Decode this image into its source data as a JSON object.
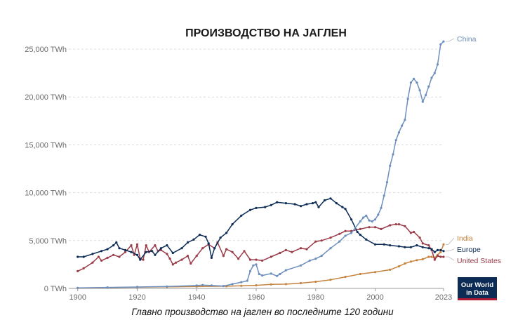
{
  "title": "ПРОИЗВОДСТВО НА ЈАГЛЕН",
  "caption": "Главно производство на јаглен во последните 120 години",
  "logo": {
    "line1": "Our World",
    "line2": "in Data",
    "bg": "#0c2c55",
    "accent": "#b01a32"
  },
  "chart_data": {
    "type": "line",
    "title": "ПРОИЗВОДСТВО НА ЈАГЛЕН",
    "xlabel": "",
    "ylabel": "",
    "xlim": [
      1897,
      2023
    ],
    "ylim": [
      0,
      25000
    ],
    "grid": true,
    "legend": "right",
    "y_ticks": [
      0,
      5000,
      10000,
      15000,
      20000,
      25000
    ],
    "y_tick_labels": [
      "0 TWh",
      "5,000 TWh",
      "10,000 TWh",
      "15,000 TWh",
      "20,000 TWh",
      "25,000 TWh"
    ],
    "x_ticks": [
      1900,
      1920,
      1940,
      1960,
      1980,
      2000,
      2023
    ],
    "x_tick_labels": [
      "1900",
      "1920",
      "1940",
      "1960",
      "1980",
      "2000",
      "2023"
    ],
    "series": [
      {
        "name": "China",
        "color": "#6d8fbd",
        "x": [
          1900,
          1910,
          1920,
          1930,
          1940,
          1942,
          1945,
          1949,
          1952,
          1955,
          1957,
          1958,
          1959,
          1960,
          1961,
          1962,
          1965,
          1967,
          1968,
          1970,
          1975,
          1978,
          1980,
          1982,
          1985,
          1988,
          1990,
          1992,
          1995,
          1996,
          1997,
          1998,
          1999,
          2000,
          2001,
          2002,
          2003,
          2004,
          2005,
          2006,
          2007,
          2008,
          2009,
          2010,
          2011,
          2012,
          2013,
          2014,
          2015,
          2016,
          2017,
          2018,
          2019,
          2020,
          2021,
          2022,
          2023
        ],
        "values": [
          50,
          100,
          150,
          200,
          300,
          350,
          300,
          250,
          450,
          650,
          800,
          1800,
          2400,
          2500,
          1500,
          1350,
          1550,
          1300,
          1500,
          1900,
          2400,
          2900,
          3100,
          3400,
          4200,
          4900,
          5500,
          5800,
          7000,
          7400,
          7600,
          7100,
          7000,
          7200,
          7700,
          8400,
          9700,
          11100,
          12800,
          14000,
          15500,
          16300,
          17000,
          17600,
          19800,
          21500,
          21900,
          21500,
          20700,
          19500,
          20200,
          21100,
          22000,
          22500,
          23400,
          25500,
          25800
        ]
      },
      {
        "name": "Europe",
        "color": "#0c2c55",
        "x": [
          1900,
          1902,
          1905,
          1908,
          1910,
          1912,
          1913,
          1914,
          1916,
          1918,
          1920,
          1921,
          1923,
          1925,
          1926,
          1928,
          1930,
          1932,
          1935,
          1937,
          1939,
          1941,
          1943,
          1944,
          1945,
          1946,
          1948,
          1950,
          1952,
          1955,
          1958,
          1960,
          1963,
          1965,
          1967,
          1970,
          1973,
          1975,
          1977,
          1979,
          1980,
          1981,
          1983,
          1985,
          1987,
          1989,
          1990,
          1992,
          1994,
          1995,
          1997,
          2000,
          2003,
          2005,
          2008,
          2010,
          2012,
          2014,
          2016,
          2018,
          2019,
          2020,
          2021,
          2022,
          2023
        ],
        "values": [
          3300,
          3300,
          3600,
          3900,
          4100,
          4500,
          4800,
          4200,
          4000,
          3800,
          3500,
          3000,
          3800,
          3900,
          3500,
          4200,
          4500,
          3700,
          4200,
          4800,
          5100,
          5600,
          5400,
          4700,
          3200,
          4200,
          5300,
          5800,
          6700,
          7600,
          8200,
          8400,
          8500,
          8700,
          9000,
          8900,
          8800,
          8600,
          8800,
          8900,
          9000,
          8500,
          9200,
          9400,
          8900,
          8500,
          8300,
          7200,
          5900,
          5600,
          5100,
          4600,
          4600,
          4500,
          4400,
          4300,
          4300,
          4500,
          4300,
          4200,
          4100,
          3800,
          4000,
          4000,
          3900
        ]
      },
      {
        "name": "India",
        "color": "#c5843f",
        "x": [
          1900,
          1910,
          1920,
          1930,
          1940,
          1950,
          1955,
          1960,
          1965,
          1970,
          1975,
          1980,
          1985,
          1990,
          1995,
          2000,
          2005,
          2008,
          2010,
          2012,
          2014,
          2016,
          2018,
          2019,
          2020,
          2021,
          2022,
          2023
        ],
        "values": [
          40,
          80,
          130,
          160,
          200,
          230,
          270,
          320,
          420,
          450,
          550,
          700,
          900,
          1200,
          1500,
          1700,
          1950,
          2300,
          2600,
          2800,
          2950,
          3050,
          3300,
          3300,
          3200,
          3500,
          3800,
          4600
        ]
      },
      {
        "name": "United States",
        "color": "#9b3c49",
        "x": [
          1900,
          1902,
          1905,
          1907,
          1908,
          1910,
          1912,
          1914,
          1916,
          1918,
          1919,
          1920,
          1921,
          1922,
          1923,
          1924,
          1926,
          1927,
          1928,
          1930,
          1931,
          1932,
          1933,
          1935,
          1937,
          1938,
          1940,
          1942,
          1944,
          1946,
          1947,
          1949,
          1950,
          1952,
          1954,
          1956,
          1958,
          1960,
          1962,
          1965,
          1968,
          1970,
          1972,
          1975,
          1977,
          1980,
          1982,
          1985,
          1988,
          1990,
          1992,
          1995,
          1998,
          2000,
          2002,
          2005,
          2007,
          2008,
          2010,
          2012,
          2013,
          2015,
          2016,
          2018,
          2019,
          2020,
          2021,
          2022,
          2023
        ],
        "values": [
          1800,
          2100,
          2700,
          3300,
          2900,
          3200,
          3500,
          3300,
          3800,
          4500,
          3500,
          4600,
          3100,
          3000,
          4500,
          3800,
          4500,
          3900,
          4000,
          3600,
          3100,
          2500,
          2700,
          3000,
          3400,
          2600,
          3400,
          4200,
          4600,
          4200,
          4800,
          3400,
          4100,
          3800,
          3100,
          3900,
          3000,
          3000,
          2900,
          3300,
          3700,
          4000,
          3800,
          4200,
          4100,
          4900,
          5000,
          5300,
          5700,
          6000,
          6000,
          6200,
          6400,
          6400,
          6200,
          6600,
          6700,
          6700,
          6500,
          5800,
          5900,
          5300,
          4700,
          4500,
          4000,
          3000,
          3400,
          3300,
          3300
        ]
      }
    ]
  }
}
